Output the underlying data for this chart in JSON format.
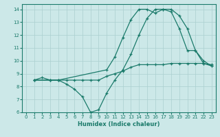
{
  "xlabel": "Humidex (Indice chaleur)",
  "bg_color": "#cce8e8",
  "grid_color": "#aacfcf",
  "line_color": "#1a7a6a",
  "xlim": [
    -0.5,
    23.5
  ],
  "ylim": [
    6,
    14.4
  ],
  "xticks": [
    0,
    1,
    2,
    3,
    4,
    5,
    6,
    7,
    8,
    9,
    10,
    11,
    12,
    13,
    14,
    15,
    16,
    17,
    18,
    19,
    20,
    21,
    22,
    23
  ],
  "yticks": [
    6,
    7,
    8,
    9,
    10,
    11,
    12,
    13,
    14
  ],
  "line1_x": [
    1,
    2,
    3,
    4,
    5,
    6,
    7,
    8,
    9,
    10,
    11,
    12,
    13,
    14,
    15,
    16,
    17,
    18,
    19,
    20,
    21,
    22,
    23
  ],
  "line1_y": [
    8.5,
    8.7,
    8.5,
    8.5,
    8.2,
    7.8,
    7.2,
    6.0,
    6.2,
    7.5,
    8.5,
    9.3,
    10.5,
    12.0,
    13.3,
    14.0,
    14.0,
    13.8,
    12.5,
    10.8,
    10.8,
    9.8,
    9.6
  ],
  "line2_x": [
    1,
    3,
    4,
    5,
    6,
    7,
    8,
    9,
    10,
    11,
    12,
    13,
    14,
    15,
    16,
    17,
    18,
    19,
    20,
    21,
    22,
    23
  ],
  "line2_y": [
    8.5,
    8.5,
    8.5,
    8.5,
    8.5,
    8.5,
    8.5,
    8.5,
    8.8,
    9.0,
    9.2,
    9.5,
    9.7,
    9.7,
    9.7,
    9.7,
    9.8,
    9.8,
    9.8,
    9.8,
    9.8,
    9.7
  ],
  "line3_x": [
    1,
    3,
    4,
    10,
    11,
    12,
    13,
    14,
    15,
    16,
    17,
    18,
    19,
    20,
    21,
    22,
    23
  ],
  "line3_y": [
    8.5,
    8.5,
    8.5,
    9.3,
    10.3,
    11.8,
    13.2,
    14.0,
    14.0,
    13.7,
    14.0,
    14.0,
    13.5,
    12.5,
    10.8,
    10.0,
    9.6
  ]
}
